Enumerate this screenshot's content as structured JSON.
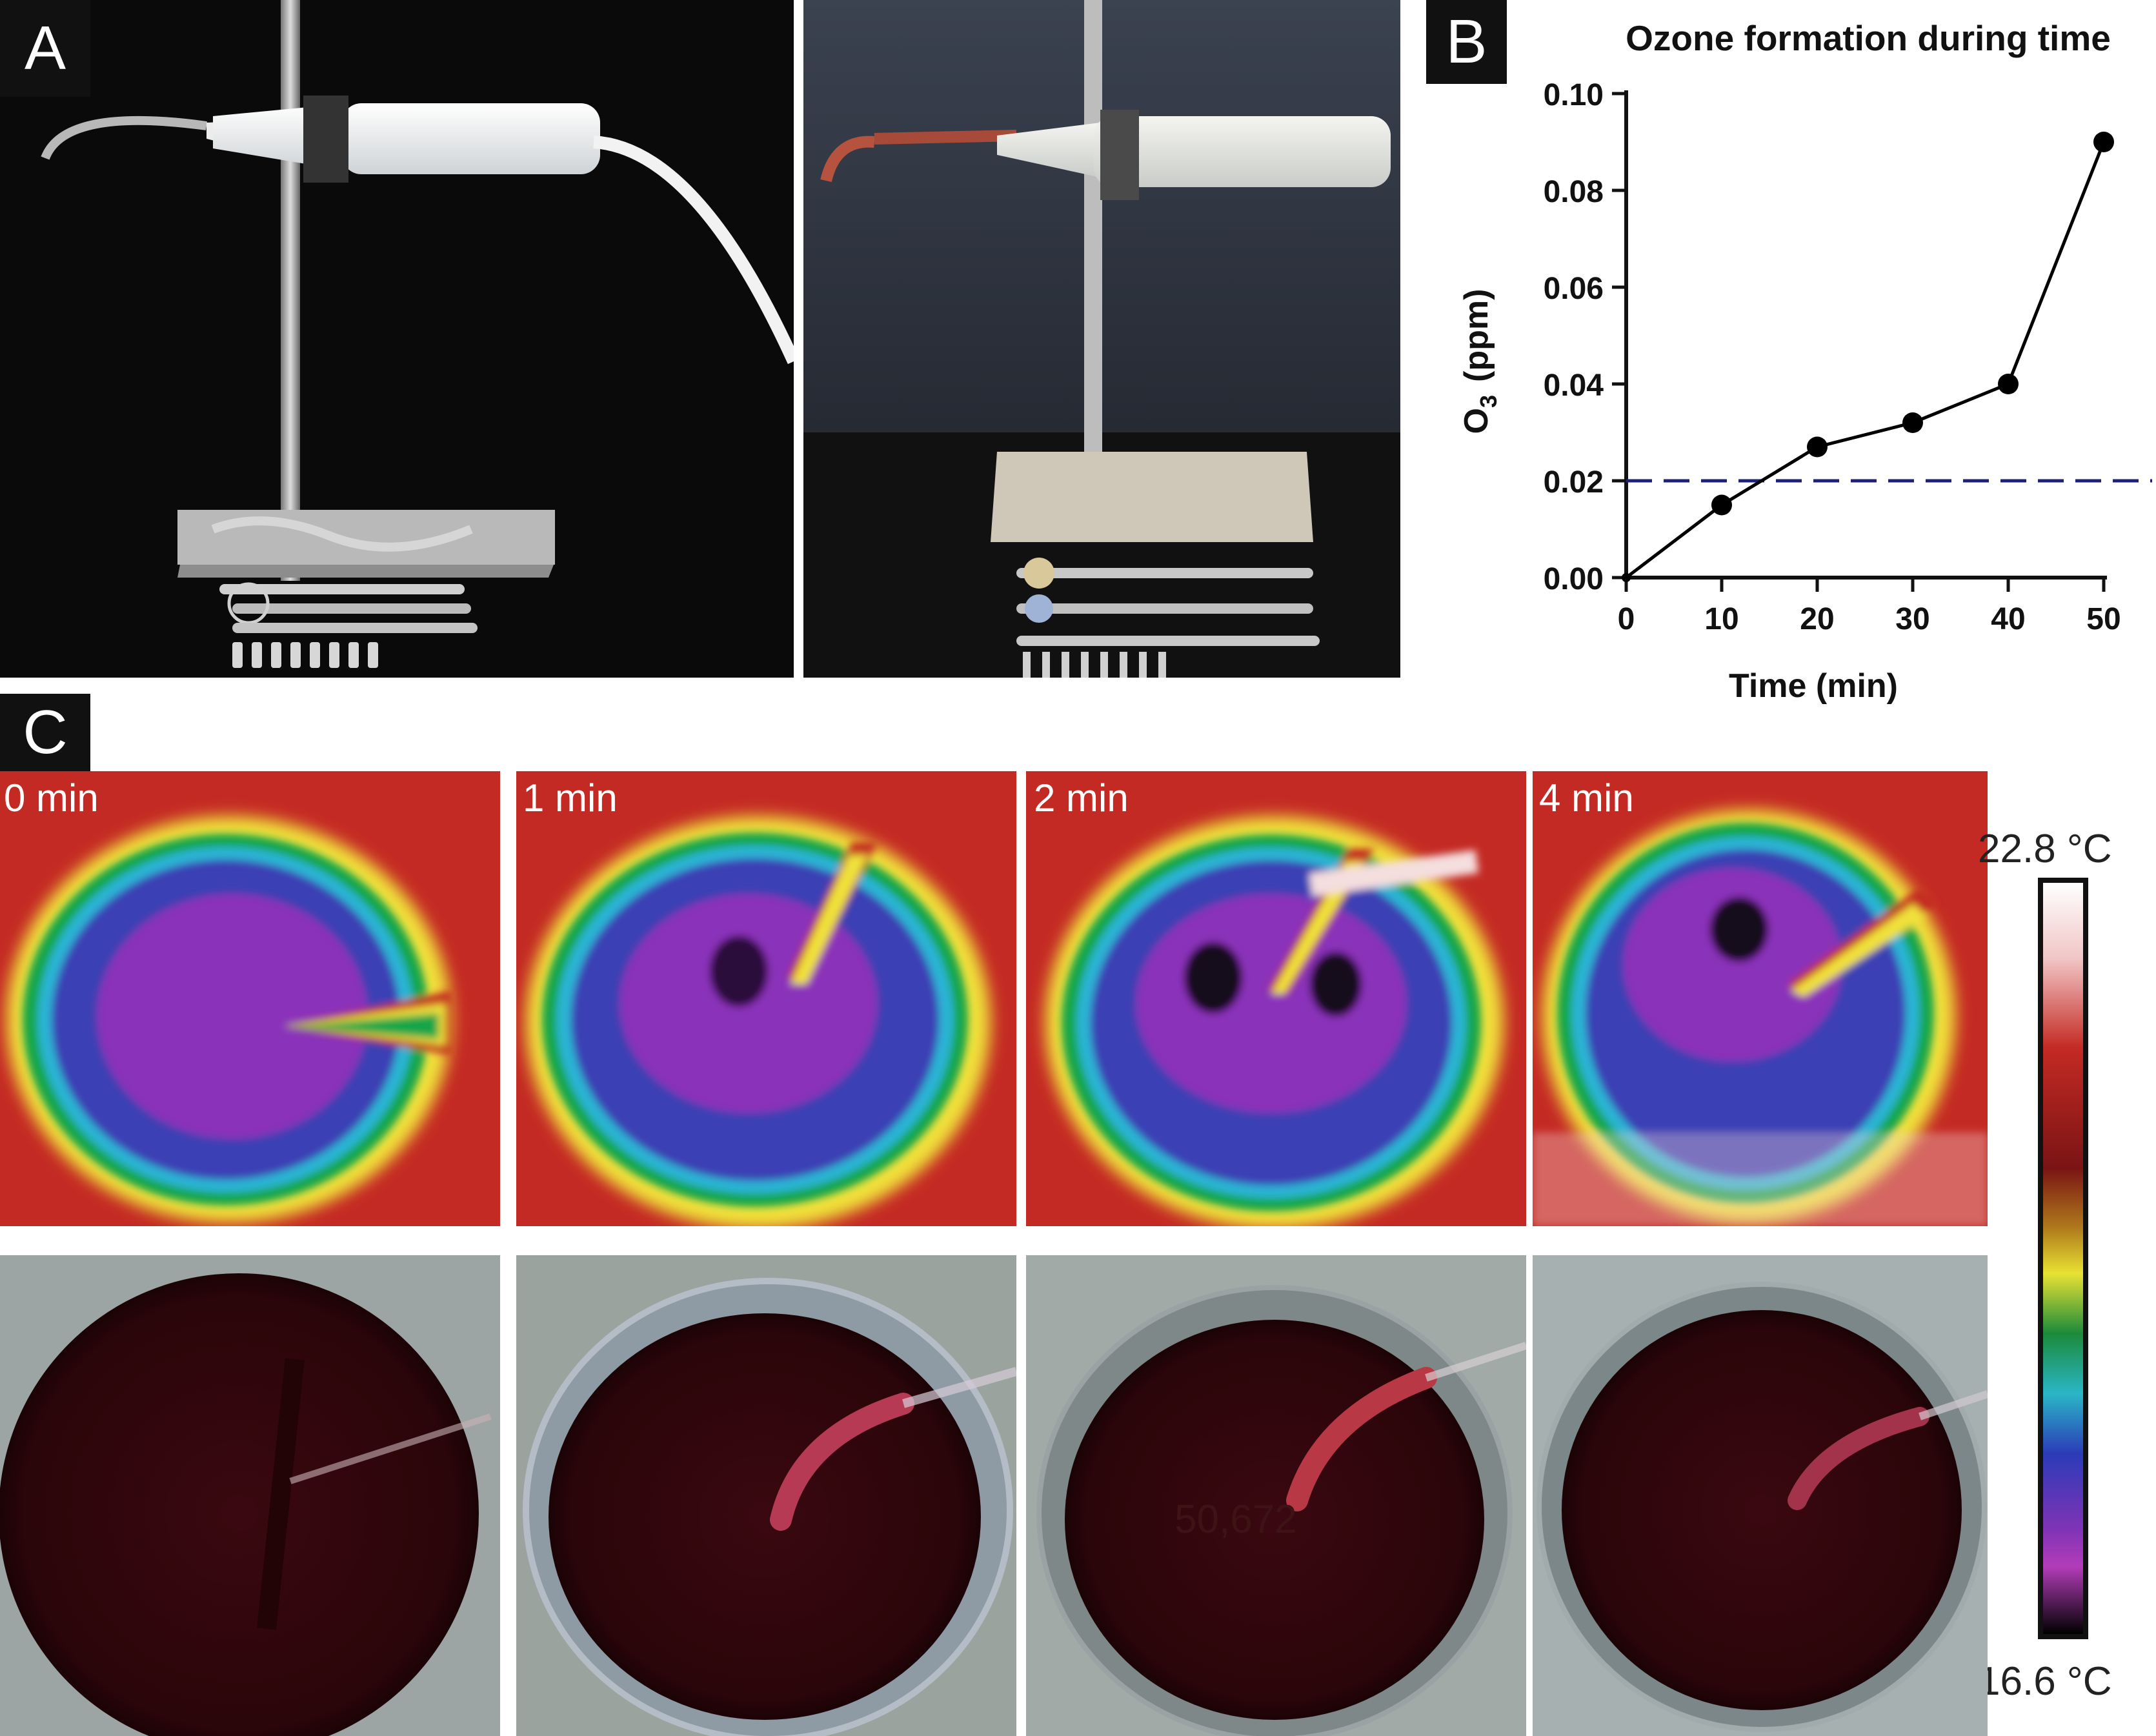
{
  "panels": {
    "a": "A",
    "b": "B",
    "c": "C"
  },
  "chart_data": {
    "type": "line",
    "title": "Ozone formation during time",
    "xlabel": "Time (min)",
    "ylabel_main": "O",
    "ylabel_sub": "3",
    "ylabel_unit": "(ppm)",
    "x": [
      0,
      10,
      20,
      30,
      40,
      50
    ],
    "y": [
      0.0,
      0.015,
      0.027,
      0.032,
      0.04,
      0.09
    ],
    "xticks": [
      "0",
      "10",
      "20",
      "30",
      "40",
      "50"
    ],
    "yticks": [
      "0.00",
      "0.02",
      "0.04",
      "0.06",
      "0.08",
      "0.10"
    ],
    "xlim": [
      0,
      50
    ],
    "ylim": [
      0,
      0.1
    ],
    "reference_line": {
      "y": 0.02,
      "style": "dashed",
      "color": "#1f1f7a"
    },
    "series_color": "#000000"
  },
  "thermal": {
    "times": [
      "0 min",
      "1 min",
      "2 min",
      "4 min"
    ],
    "scale_max": "22.8 °C",
    "scale_min": "16.6 °C"
  },
  "photo_overlay_text": "50,672"
}
